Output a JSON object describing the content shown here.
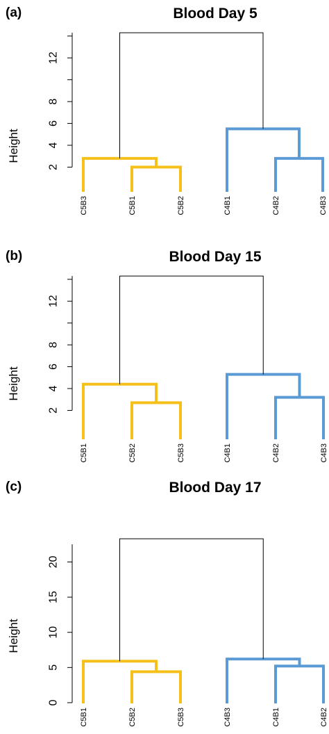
{
  "chart_data": [
    {
      "type": "dendrogram",
      "panel_label": "(a)",
      "title": "Blood Day 5",
      "ylabel": "Height",
      "yticks": [
        2,
        4,
        6,
        8,
        12
      ],
      "ylim": [
        0.5,
        14.5
      ],
      "leaves": [
        "C5B3",
        "C5B1",
        "C5B2",
        "C4B1",
        "C4B2",
        "C4B3"
      ],
      "merges": [
        {
          "a": 1,
          "b": 2,
          "height": 2.0,
          "color": "#F5C01A"
        },
        {
          "a": 0,
          "b": "m0",
          "height": 2.8,
          "color": "#F5C01A"
        },
        {
          "a": 4,
          "b": 5,
          "height": 2.8,
          "color": "#5B9BD5"
        },
        {
          "a": 3,
          "b": "m2",
          "height": 5.5,
          "color": "#5B9BD5"
        },
        {
          "a": "m1",
          "b": "m3",
          "height": 14.3,
          "color": "#000000"
        }
      ]
    },
    {
      "type": "dendrogram",
      "panel_label": "(b)",
      "title": "Blood Day 15",
      "ylabel": "Height",
      "yticks": [
        2,
        4,
        6,
        8,
        12
      ],
      "ylim": [
        0.5,
        14.5
      ],
      "leaves": [
        "C5B1",
        "C5B2",
        "C5B3",
        "C4B1",
        "C4B2",
        "C4B3"
      ],
      "merges": [
        {
          "a": 1,
          "b": 2,
          "height": 2.7,
          "color": "#F5C01A"
        },
        {
          "a": 0,
          "b": "m0",
          "height": 4.4,
          "color": "#F5C01A"
        },
        {
          "a": 4,
          "b": 5,
          "height": 3.2,
          "color": "#5B9BD5"
        },
        {
          "a": 3,
          "b": "m2",
          "height": 5.3,
          "color": "#5B9BD5"
        },
        {
          "a": "m1",
          "b": "m3",
          "height": 14.3,
          "color": "#000000"
        }
      ]
    },
    {
      "type": "dendrogram",
      "panel_label": "(c)",
      "title": "Blood Day 17",
      "ylabel": "Height",
      "yticks": [
        0,
        5,
        10,
        15,
        20
      ],
      "ylim": [
        -0.5,
        24
      ],
      "leaves": [
        "C5B1",
        "C5B2",
        "C5B3",
        "C4B3",
        "C4B1",
        "C4B2"
      ],
      "merges": [
        {
          "a": 1,
          "b": 2,
          "height": 4.4,
          "color": "#F5C01A"
        },
        {
          "a": 0,
          "b": "m0",
          "height": 5.9,
          "color": "#F5C01A"
        },
        {
          "a": 4,
          "b": 5,
          "height": 5.2,
          "color": "#5B9BD5"
        },
        {
          "a": 3,
          "b": "m2",
          "height": 6.2,
          "color": "#5B9BD5"
        },
        {
          "a": "m1",
          "b": "m3",
          "height": 23.3,
          "color": "#000000"
        }
      ]
    }
  ]
}
